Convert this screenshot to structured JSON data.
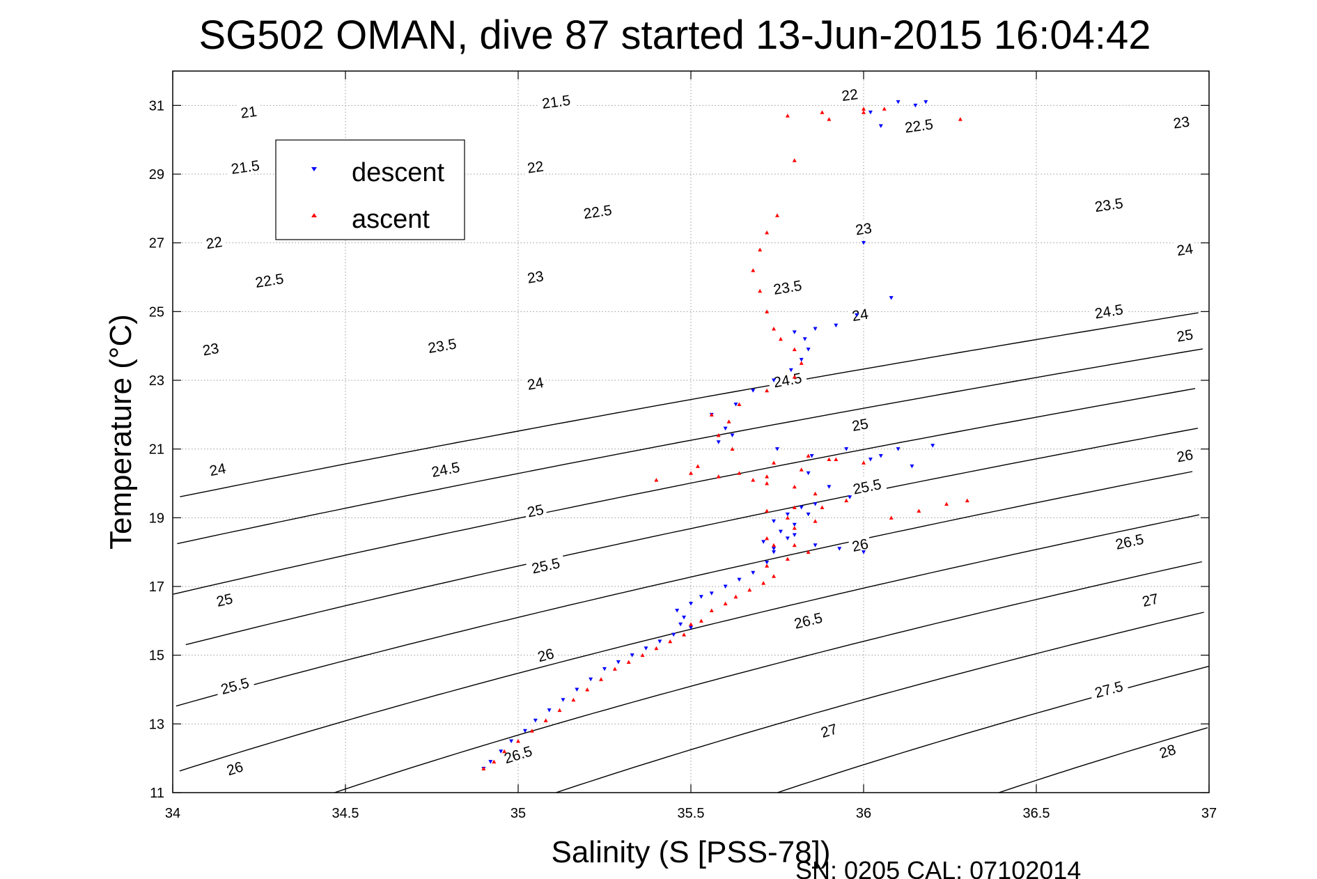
{
  "chart_data": {
    "type": "scatter",
    "title": "SG502 OMAN, dive 87 started 13-Jun-2015 16:04:42",
    "xlabel": "Salinity (S [PSS-78])",
    "ylabel": "Temperature (°C)",
    "xlim": [
      34,
      37
    ],
    "ylim": [
      11,
      32
    ],
    "xticks": [
      "34",
      "34.5",
      "35",
      "35.5",
      "36",
      "36.5",
      "37"
    ],
    "yticks": [
      "11",
      "13",
      "15",
      "17",
      "19",
      "21",
      "23",
      "25",
      "27",
      "29",
      "31"
    ],
    "grid": true,
    "legend_position": "upper-left",
    "footer": "SN: 0205  CAL: 07102014",
    "contour_label_positions": [
      {
        "s": 34.22,
        "t": 30.8,
        "label": "21"
      },
      {
        "s": 34.21,
        "t": 29.2,
        "label": "21.5"
      },
      {
        "s": 34.12,
        "t": 27.0,
        "label": "22"
      },
      {
        "s": 34.28,
        "t": 25.9,
        "label": "22.5"
      },
      {
        "s": 34.11,
        "t": 23.9,
        "label": "23"
      },
      {
        "s": 34.13,
        "t": 20.4,
        "label": "24"
      },
      {
        "s": 34.15,
        "t": 16.6,
        "label": "25"
      },
      {
        "s": 34.18,
        "t": 14.1,
        "label": "25.5"
      },
      {
        "s": 34.18,
        "t": 11.7,
        "label": "26"
      },
      {
        "s": 35.11,
        "t": 31.1,
        "label": "21.5"
      },
      {
        "s": 35.05,
        "t": 29.2,
        "label": "22"
      },
      {
        "s": 35.23,
        "t": 27.9,
        "label": "22.5"
      },
      {
        "s": 35.05,
        "t": 26.0,
        "label": "23"
      },
      {
        "s": 34.78,
        "t": 24.0,
        "label": "23.5"
      },
      {
        "s": 35.05,
        "t": 22.9,
        "label": "24"
      },
      {
        "s": 34.79,
        "t": 20.4,
        "label": "24.5"
      },
      {
        "s": 35.05,
        "t": 19.2,
        "label": "25"
      },
      {
        "s": 35.08,
        "t": 17.6,
        "label": "25.5"
      },
      {
        "s": 35.08,
        "t": 15.0,
        "label": "26"
      },
      {
        "s": 35.0,
        "t": 12.1,
        "label": "26.5"
      },
      {
        "s": 35.96,
        "t": 31.3,
        "label": "22"
      },
      {
        "s": 36.16,
        "t": 30.4,
        "label": "22.5"
      },
      {
        "s": 36.0,
        "t": 27.4,
        "label": "23"
      },
      {
        "s": 35.78,
        "t": 25.7,
        "label": "23.5"
      },
      {
        "s": 35.99,
        "t": 24.9,
        "label": "24"
      },
      {
        "s": 35.78,
        "t": 23.0,
        "label": "24.5"
      },
      {
        "s": 35.99,
        "t": 21.7,
        "label": "25"
      },
      {
        "s": 36.01,
        "t": 19.9,
        "label": "25.5"
      },
      {
        "s": 35.99,
        "t": 18.2,
        "label": "26"
      },
      {
        "s": 35.84,
        "t": 16.0,
        "label": "26.5"
      },
      {
        "s": 35.9,
        "t": 12.8,
        "label": "27"
      },
      {
        "s": 36.92,
        "t": 30.5,
        "label": "23"
      },
      {
        "s": 36.71,
        "t": 28.1,
        "label": "23.5"
      },
      {
        "s": 36.93,
        "t": 26.8,
        "label": "24"
      },
      {
        "s": 36.71,
        "t": 25.0,
        "label": "24.5"
      },
      {
        "s": 36.93,
        "t": 24.3,
        "label": "25"
      },
      {
        "s": 36.93,
        "t": 20.8,
        "label": "26"
      },
      {
        "s": 36.77,
        "t": 18.3,
        "label": "26.5"
      },
      {
        "s": 36.83,
        "t": 16.6,
        "label": "27"
      },
      {
        "s": 36.71,
        "t": 14.0,
        "label": "27.5"
      },
      {
        "s": 36.88,
        "t": 12.2,
        "label": "28"
      }
    ],
    "series": [
      {
        "name": "descent",
        "color": "#0000ff",
        "marker": "triangle-down",
        "x": [
          34.9,
          34.92,
          34.95,
          34.98,
          35.02,
          35.05,
          35.09,
          35.13,
          35.17,
          35.21,
          35.25,
          35.29,
          35.33,
          35.37,
          35.41,
          35.45,
          35.47,
          35.5,
          35.48,
          35.46,
          35.5,
          35.53,
          35.56,
          35.6,
          35.64,
          35.68,
          35.72,
          35.74,
          35.71,
          35.76,
          35.74,
          35.78,
          35.82,
          35.86,
          35.84,
          35.8,
          35.78,
          35.74,
          35.8,
          35.86,
          35.93,
          36.0,
          35.96,
          35.9,
          35.84,
          36.02,
          36.1,
          36.2,
          36.14,
          36.05,
          35.95,
          35.85,
          35.75,
          35.62,
          35.58,
          35.6,
          35.56,
          35.63,
          35.68,
          35.74,
          35.79,
          35.82,
          35.84,
          35.83,
          35.8,
          35.86,
          35.92,
          35.98,
          36.08,
          36.0,
          36.05,
          36.15,
          36.18,
          36.1,
          36.02
        ],
        "y": [
          11.7,
          11.9,
          12.2,
          12.5,
          12.8,
          13.1,
          13.4,
          13.7,
          14.0,
          14.3,
          14.6,
          14.8,
          15.0,
          15.2,
          15.4,
          15.6,
          15.9,
          15.8,
          16.1,
          16.3,
          16.5,
          16.7,
          16.8,
          17.0,
          17.2,
          17.4,
          17.7,
          18.0,
          18.3,
          18.6,
          18.9,
          19.1,
          19.3,
          19.4,
          19.1,
          18.8,
          18.4,
          18.1,
          18.5,
          18.2,
          18.1,
          18.0,
          19.6,
          19.9,
          20.3,
          20.7,
          21.0,
          21.1,
          20.5,
          20.8,
          21.0,
          20.8,
          21.0,
          21.4,
          21.2,
          21.6,
          22.0,
          22.3,
          22.7,
          23.0,
          23.3,
          23.6,
          23.9,
          24.2,
          24.4,
          24.5,
          24.6,
          24.9,
          25.4,
          27.0,
          30.4,
          31.0,
          31.1,
          31.1,
          30.8
        ]
      },
      {
        "name": "ascent",
        "color": "#ff0000",
        "marker": "triangle-up",
        "x": [
          34.9,
          34.93,
          34.96,
          35.0,
          35.04,
          35.08,
          35.12,
          35.16,
          35.2,
          35.24,
          35.28,
          35.32,
          35.36,
          35.4,
          35.44,
          35.48,
          35.5,
          35.53,
          35.56,
          35.6,
          35.63,
          35.67,
          35.71,
          35.74,
          35.72,
          35.78,
          35.84,
          35.8,
          35.74,
          35.72,
          35.8,
          35.86,
          35.78,
          35.72,
          35.8,
          35.88,
          35.95,
          35.86,
          35.8,
          35.72,
          35.68,
          35.58,
          35.5,
          35.4,
          35.52,
          35.64,
          35.74,
          35.84,
          35.92,
          36.0,
          36.08,
          36.16,
          36.24,
          36.3,
          35.9,
          35.82,
          35.72,
          35.62,
          35.58,
          35.61,
          35.56,
          35.64,
          35.72,
          35.8,
          35.82,
          35.8,
          35.76,
          35.74,
          35.72,
          35.7,
          35.68,
          35.7,
          35.72,
          35.75,
          35.8,
          35.9,
          36.0,
          36.06,
          36.0,
          35.88,
          35.78,
          36.28
        ],
        "y": [
          11.7,
          11.9,
          12.2,
          12.5,
          12.8,
          13.1,
          13.4,
          13.7,
          14.0,
          14.3,
          14.6,
          14.8,
          15.0,
          15.2,
          15.4,
          15.6,
          15.9,
          16.0,
          16.3,
          16.5,
          16.7,
          16.9,
          17.1,
          17.3,
          17.6,
          17.8,
          18.0,
          18.2,
          18.2,
          18.4,
          18.7,
          18.9,
          19.0,
          19.2,
          19.3,
          19.3,
          19.5,
          19.7,
          19.9,
          20.0,
          20.1,
          20.2,
          20.3,
          20.1,
          20.5,
          20.3,
          20.6,
          20.8,
          20.7,
          20.6,
          19.0,
          19.2,
          19.4,
          19.5,
          20.7,
          20.4,
          20.2,
          21.0,
          21.4,
          21.8,
          22.0,
          22.3,
          22.7,
          23.1,
          23.5,
          23.9,
          24.2,
          24.5,
          25.0,
          25.6,
          26.2,
          26.8,
          27.3,
          27.8,
          29.4,
          30.6,
          30.9,
          30.9,
          30.8,
          30.8,
          30.7,
          30.6
        ]
      }
    ]
  }
}
